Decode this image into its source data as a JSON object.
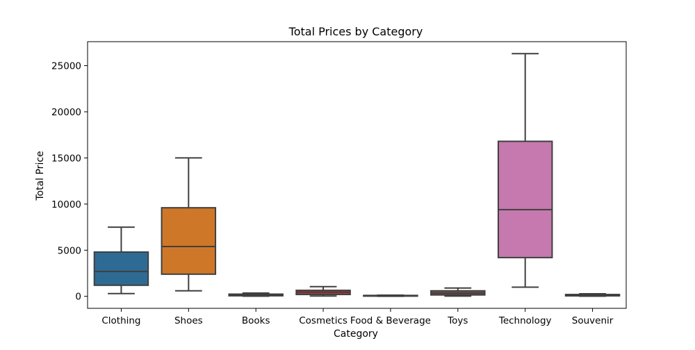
{
  "chart_data": {
    "type": "box",
    "title": "Total Prices by Category",
    "xlabel": "Category",
    "ylabel": "Total Price",
    "ylim": [
      -1300,
      27600
    ],
    "yticks": [
      0,
      5000,
      10000,
      15000,
      20000,
      25000
    ],
    "ytick_labels": [
      "0",
      "5000",
      "10000",
      "15000",
      "20000",
      "25000"
    ],
    "grid": false,
    "categories": [
      "Clothing",
      "Shoes",
      "Books",
      "Cosmetics",
      "Food & Beverage",
      "Toys",
      "Technology",
      "Souvenir"
    ],
    "boxes": [
      {
        "category": "Clothing",
        "whisker_low": 300,
        "q1": 1200,
        "median": 2700,
        "q3": 4800,
        "whisker_high": 7500,
        "color": "#3274a1"
      },
      {
        "category": "Shoes",
        "whisker_low": 600,
        "q1": 2400,
        "median": 5400,
        "q3": 9600,
        "whisker_high": 15000,
        "color": "#e1812c"
      },
      {
        "category": "Books",
        "whisker_low": 15,
        "q1": 60,
        "median": 150,
        "q3": 240,
        "whisker_high": 360,
        "color": "#3a923a"
      },
      {
        "category": "Cosmetics",
        "whisker_low": 40,
        "q1": 200,
        "median": 450,
        "q3": 650,
        "whisker_high": 1050,
        "color": "#c03d3e"
      },
      {
        "category": "Food & Beverage",
        "whisker_low": 5,
        "q1": 25,
        "median": 60,
        "q3": 100,
        "whisker_high": 130,
        "color": "#9372b2"
      },
      {
        "category": "Toys",
        "whisker_low": 30,
        "q1": 150,
        "median": 350,
        "q3": 600,
        "whisker_high": 900,
        "color": "#845b53"
      },
      {
        "category": "Technology",
        "whisker_low": 1000,
        "q1": 4200,
        "median": 9400,
        "q3": 16800,
        "whisker_high": 26300,
        "color": "#d684bd"
      },
      {
        "category": "Souvenir",
        "whisker_low": 15,
        "q1": 50,
        "median": 120,
        "q3": 200,
        "whisker_high": 280,
        "color": "#7f7f7f"
      }
    ]
  }
}
